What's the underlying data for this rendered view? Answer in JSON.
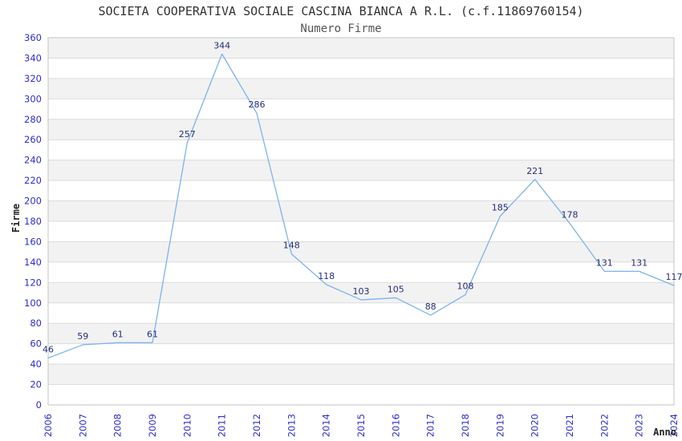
{
  "window": {
    "background": "#ffffff"
  },
  "chart_data": {
    "type": "line",
    "title": "SOCIETA COOPERATIVA SOCIALE CASCINA BIANCA A R.L. (c.f.11869760154)",
    "subtitle": "Numero Firme",
    "xlabel": "Anno",
    "ylabel": "Firme",
    "categories": [
      "2006",
      "2007",
      "2008",
      "2009",
      "2010",
      "2011",
      "2012",
      "2013",
      "2014",
      "2015",
      "2016",
      "2017",
      "2018",
      "2019",
      "2020",
      "2021",
      "2022",
      "2023",
      "2024"
    ],
    "series": [
      {
        "name": "Numero Firme",
        "values": [
          46,
          59,
          61,
          61,
          257,
          344,
          286,
          148,
          118,
          103,
          105,
          88,
          108,
          185,
          221,
          178,
          131,
          131,
          117
        ]
      }
    ],
    "point_labels_visible": true,
    "ylim": [
      0,
      360
    ],
    "ytick_step": 20,
    "x_tick_rotation": -90,
    "grid": "horizontal",
    "banded_background": true,
    "legend": "none",
    "colors": {
      "line": "#7db3ee",
      "tick_label": "#2d2dcf",
      "point_label": "#252e78",
      "band": "#f2f2f2",
      "gridline": "#dcdcdc",
      "plot_border": "#c6c6c6",
      "plot_background": "#ffffff",
      "title": "#333333",
      "subtitle": "#555555",
      "axis_title": "#222222"
    }
  }
}
